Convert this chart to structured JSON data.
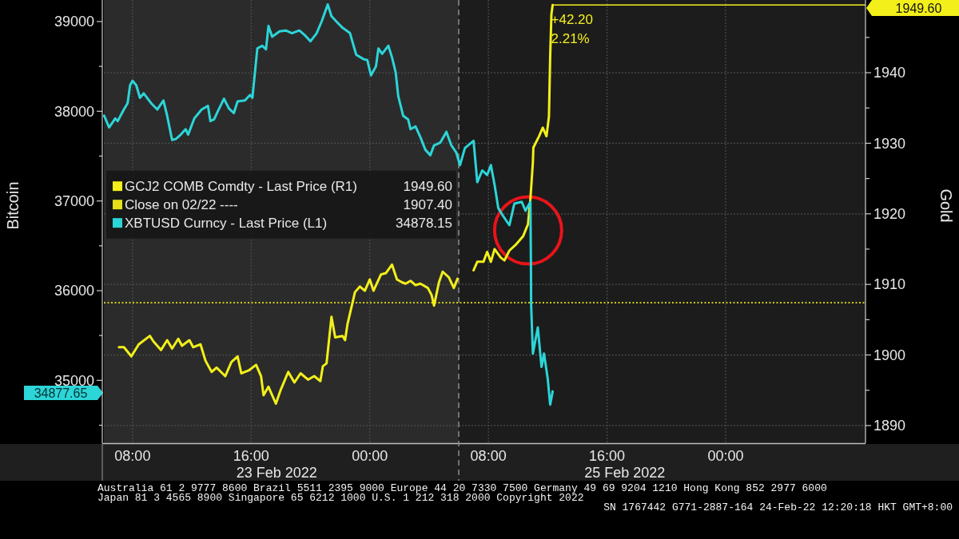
{
  "chart_data": {
    "type": "line",
    "ylabel": "Bitcoin",
    "y2label": "Gold",
    "xlim": [
      "2022-02-23T06:04",
      "2022-02-25T09:26"
    ],
    "xticks": [
      {
        "value": "2022-02-23T08:00",
        "label": "08:00"
      },
      {
        "value": "2022-02-23T16:00",
        "label": "16:00"
      },
      {
        "value": "2022-02-24T00:00",
        "label": "00:00"
      },
      {
        "value": "2022-02-24T08:00",
        "label": "08:00"
      },
      {
        "value": "2022-02-24T16:00",
        "label": "16:00"
      },
      {
        "value": "2022-02-25T00:00",
        "label": "00:00"
      }
    ],
    "ylim": [
      34300,
      39240
    ],
    "yticks": [
      {
        "value": 34500,
        "label": null
      },
      35000,
      {
        "value": 35500,
        "label": null
      },
      36000,
      {
        "value": 36500,
        "label": null
      },
      37000,
      {
        "value": 37500,
        "label": null
      },
      38000,
      {
        "value": 38500,
        "label": null
      },
      39000
    ],
    "y2lim": [
      1887.5,
      1950.3
    ],
    "y2ticks": [
      1890,
      {
        "value": 1895,
        "label": null
      },
      1900,
      {
        "value": 1905,
        "label": null
      },
      1910,
      {
        "value": 1915,
        "label": null
      },
      1920,
      {
        "value": 1925,
        "label": null
      },
      1930,
      {
        "value": 1935,
        "label": null
      },
      1940,
      {
        "value": 1945,
        "label": null
      }
    ],
    "grid": true,
    "legend": "left",
    "series": [
      {
        "name": "GCJ2 COMB Comdty - Last Price (R1)",
        "color": "#f2ef1b",
        "axis": "y2",
        "x": [
          "2022-02-23T07:05",
          "2022-02-23T07:25",
          "2022-02-23T07:55",
          "2022-02-23T08:25",
          "2022-02-23T09:10",
          "2022-02-23T09:25",
          "2022-02-23T09:55",
          "2022-02-23T10:20",
          "2022-02-23T10:40",
          "2022-02-23T11:05",
          "2022-02-23T11:20",
          "2022-02-23T11:50",
          "2022-02-23T12:05",
          "2022-02-23T12:35",
          "2022-02-23T12:55",
          "2022-02-23T13:20",
          "2022-02-23T13:40",
          "2022-02-23T14:15",
          "2022-02-23T14:40",
          "2022-02-23T15:05",
          "2022-02-23T15:20",
          "2022-02-23T15:50",
          "2022-02-23T16:20",
          "2022-02-23T16:40",
          "2022-02-23T16:50",
          "2022-02-23T17:10",
          "2022-02-23T17:40",
          "2022-02-23T18:00",
          "2022-02-23T18:30",
          "2022-02-23T18:55",
          "2022-02-23T19:20",
          "2022-02-23T19:50",
          "2022-02-23T20:15",
          "2022-02-23T20:40",
          "2022-02-23T20:50",
          "2022-02-23T21:05",
          "2022-02-23T21:25",
          "2022-02-23T21:40",
          "2022-02-23T22:10",
          "2022-02-23T22:20",
          "2022-02-23T22:30",
          "2022-02-23T23:00",
          "2022-02-23T23:20",
          "2022-02-23T23:40",
          "2022-02-24T00:00",
          "2022-02-24T00:15",
          "2022-02-24T00:45",
          "2022-02-24T01:05",
          "2022-02-24T01:30",
          "2022-02-24T01:50",
          "2022-02-24T02:10",
          "2022-02-24T02:25",
          "2022-02-24T02:45",
          "2022-02-24T03:05",
          "2022-02-24T03:25",
          "2022-02-24T03:55",
          "2022-02-24T04:10",
          "2022-02-24T04:20",
          "2022-02-24T04:40",
          "2022-02-24T04:55",
          "2022-02-24T05:20",
          "2022-02-24T05:40",
          "2022-02-24T05:55",
          "2022-02-24T06:25",
          "2022-02-24T07:00",
          "2022-02-24T07:15",
          "2022-02-24T07:40",
          "2022-02-24T07:55",
          "2022-02-24T08:10",
          "2022-02-24T08:25",
          "2022-02-24T08:50",
          "2022-02-24T09:05",
          "2022-02-24T09:25",
          "2022-02-24T09:50",
          "2022-02-24T10:20",
          "2022-02-24T10:40",
          "2022-02-24T10:50",
          "2022-02-24T11:00",
          "2022-02-24T11:02",
          "2022-02-24T11:25",
          "2022-02-24T11:40",
          "2022-02-24T11:55",
          "2022-02-24T12:05",
          "2022-02-24T12:10",
          "2022-02-24T12:15",
          "2022-02-24T12:20"
        ],
        "values": [
          1901.1,
          1901.1,
          1899.8,
          1901.5,
          1902.7,
          1901.9,
          1900.7,
          1902.1,
          1900.9,
          1902.3,
          1901.3,
          1902.1,
          1901.1,
          1901.5,
          1899.2,
          1897.6,
          1898.2,
          1897.0,
          1899.0,
          1899.8,
          1897.4,
          1897.8,
          1898.6,
          1897.0,
          1894.3,
          1895.5,
          1893.1,
          1895.1,
          1897.6,
          1896.1,
          1897.4,
          1896.5,
          1897.0,
          1896.3,
          1898.4,
          1898.8,
          1905.4,
          1902.5,
          1902.7,
          1902.1,
          1904.4,
          1908.9,
          1909.7,
          1909.1,
          1910.7,
          1909.1,
          1911.4,
          1911.6,
          1912.8,
          1910.7,
          1910.3,
          1910.1,
          1910.5,
          1909.9,
          1910.1,
          1909.5,
          1908.5,
          1907.0,
          1910.3,
          1911.8,
          1911.0,
          1909.5,
          1910.8,
          null,
          1912.0,
          1913.2,
          1913.2,
          1914.6,
          1913.2,
          1915.0,
          1913.8,
          1913.4,
          1914.8,
          1915.6,
          1916.8,
          1918.5,
          1922.1,
          1927.3,
          1929.4,
          1931.0,
          1932.2,
          1931.0,
          1933.8,
          1942.3,
          1948.3,
          1949.6
        ]
      },
      {
        "name": "XBTUSD Curncy - Last Price (L1)",
        "color": "#2cd5d8",
        "x": [
          "2022-02-23T06:05",
          "2022-02-23T06:25",
          "2022-02-23T06:50",
          "2022-02-23T07:00",
          "2022-02-23T07:25",
          "2022-02-23T07:40",
          "2022-02-23T07:50",
          "2022-02-23T08:00",
          "2022-02-23T08:15",
          "2022-02-23T08:30",
          "2022-02-23T08:45",
          "2022-02-23T09:15",
          "2022-02-23T09:40",
          "2022-02-23T10:05",
          "2022-02-23T10:20",
          "2022-02-23T10:40",
          "2022-02-23T10:55",
          "2022-02-23T11:15",
          "2022-02-23T11:35",
          "2022-02-23T11:45",
          "2022-02-23T12:10",
          "2022-02-23T12:40",
          "2022-02-23T13:05",
          "2022-02-23T13:15",
          "2022-02-23T13:30",
          "2022-02-23T13:45",
          "2022-02-23T14:10",
          "2022-02-23T14:30",
          "2022-02-23T14:50",
          "2022-02-23T15:05",
          "2022-02-23T15:35",
          "2022-02-23T15:55",
          "2022-02-23T16:05",
          "2022-02-23T16:25",
          "2022-02-23T16:45",
          "2022-02-23T17:00",
          "2022-02-23T17:10",
          "2022-02-23T17:25",
          "2022-02-23T17:55",
          "2022-02-23T18:20",
          "2022-02-23T18:45",
          "2022-02-23T19:15",
          "2022-02-23T19:40",
          "2022-02-23T20:00",
          "2022-02-23T20:25",
          "2022-02-23T20:45",
          "2022-02-23T21:10",
          "2022-02-23T21:25",
          "2022-02-23T21:45",
          "2022-02-23T22:10",
          "2022-02-23T22:30",
          "2022-02-23T22:40",
          "2022-02-23T23:05",
          "2022-02-23T23:35",
          "2022-02-23T23:50",
          "2022-02-24T00:05",
          "2022-02-24T00:25",
          "2022-02-24T00:35",
          "2022-02-24T00:50",
          "2022-02-24T01:15",
          "2022-02-24T01:30",
          "2022-02-24T01:45",
          "2022-02-24T01:55",
          "2022-02-24T02:15",
          "2022-02-24T02:35",
          "2022-02-24T02:45",
          "2022-02-24T03:05",
          "2022-02-24T03:25",
          "2022-02-24T03:45",
          "2022-02-24T04:05",
          "2022-02-24T04:20",
          "2022-02-24T04:45",
          "2022-02-24T05:10",
          "2022-02-24T05:30",
          "2022-02-24T05:50",
          "2022-02-24T06:05",
          "2022-02-24T06:25",
          "2022-02-24T07:00",
          "2022-02-24T07:15",
          "2022-02-24T07:35",
          "2022-02-24T07:55",
          "2022-02-24T08:10",
          "2022-02-24T08:25",
          "2022-02-24T08:40",
          "2022-02-24T09:00",
          "2022-02-24T09:25",
          "2022-02-24T09:45",
          "2022-02-24T10:15",
          "2022-02-24T10:30",
          "2022-02-24T10:50",
          "2022-02-24T10:52",
          "2022-02-24T10:53",
          "2022-02-24T11:00",
          "2022-02-24T11:20",
          "2022-02-24T11:35",
          "2022-02-24T11:45",
          "2022-02-24T12:00",
          "2022-02-24T12:10",
          "2022-02-24T12:20"
        ],
        "values": [
          37950,
          37820,
          37920,
          37890,
          38020,
          38090,
          38290,
          38340,
          38290,
          38150,
          38200,
          38090,
          38020,
          38120,
          37950,
          37680,
          37690,
          37740,
          37800,
          37740,
          37920,
          38020,
          38060,
          37890,
          37910,
          38000,
          38140,
          38030,
          37980,
          38110,
          38120,
          38180,
          38150,
          38700,
          38730,
          38690,
          38950,
          38830,
          38890,
          38900,
          38870,
          38900,
          38840,
          38780,
          38870,
          39000,
          39190,
          39060,
          39000,
          38930,
          38890,
          38870,
          38630,
          38580,
          38570,
          38400,
          38500,
          38700,
          38640,
          38730,
          38600,
          38430,
          38170,
          37950,
          37910,
          37800,
          37830,
          37710,
          37570,
          37510,
          37620,
          37650,
          37770,
          37620,
          37540,
          37400,
          37590,
          37670,
          37210,
          37340,
          37290,
          37400,
          37180,
          36920,
          36830,
          36730,
          36970,
          36990,
          36890,
          36990,
          36350,
          35840,
          35300,
          35590,
          35150,
          35300,
          35020,
          34730,
          34877.65
        ]
      }
    ],
    "ref_lines": [
      {
        "axis": "y2",
        "value": 1907.4,
        "label": "Close on 02/22 ----",
        "color": "#e6e21a",
        "line_style": "dotted"
      },
      {
        "axis": "x",
        "value": "2022-02-24T06:00",
        "color": "#8c8c8c",
        "line_style": "dashed"
      }
    ],
    "bands": [
      {
        "axis": "x",
        "from": "2022-02-23T06:04",
        "to": "2022-02-24T06:00",
        "color": "#2b2b2b"
      }
    ],
    "annotations": [
      "1949.60",
      "34877.65",
      "1949.60",
      "1907.40",
      "34878.15",
      "+42.20",
      "2.21%",
      "23 Feb 2022",
      "25 Feb 2022",
      "Australia 61 2 9777 8600 Brazil 5511 2395 9000 Europe 44 20 7330 7500 Germany 49 69 9204 1210 Hong Kong 852 2977 6000",
      "Japan 81 3 4565 8900 Singapore 65 6212 1000 U.S. 1 212 318 2000 Copyright 2022",
      "SN 1767442 G771-2887-164 24-Feb-22 12:20:18 HKT GMT+8:00"
    ]
  }
}
